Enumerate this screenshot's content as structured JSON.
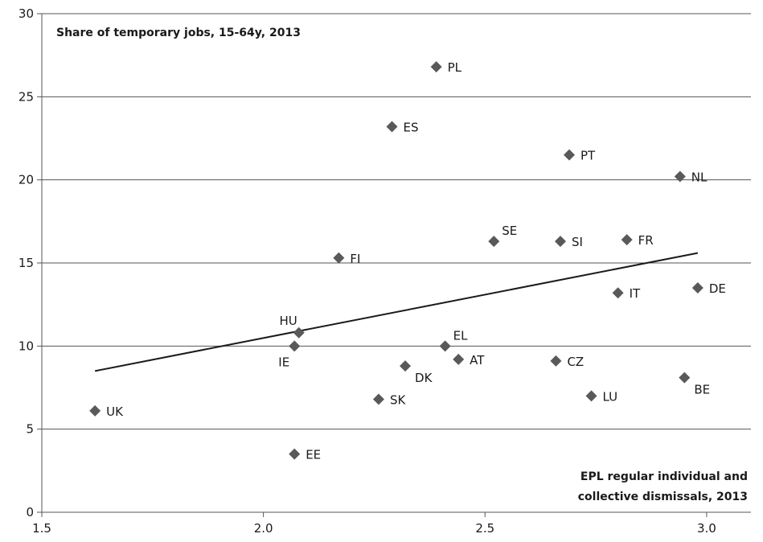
{
  "chart_data": {
    "type": "scatter",
    "title": "",
    "ylabel_annotation": "Share of temporary jobs, 15-64y, 2013",
    "xlabel_annotation": [
      "EPL regular individual and",
      "collective dismissals, 2013"
    ],
    "xlim": [
      1.5,
      3.1
    ],
    "ylim": [
      0,
      30
    ],
    "x_ticks": [
      1.5,
      2.0,
      2.5,
      3.0
    ],
    "x_tick_labels": [
      "1.5",
      "2.0",
      "2.5",
      "3.0"
    ],
    "y_ticks": [
      0,
      5,
      10,
      15,
      20,
      25,
      30
    ],
    "y_tick_labels": [
      "0",
      "5",
      "10",
      "15",
      "20",
      "25",
      "30"
    ],
    "grid": "horizontal",
    "marker_color": "#595959",
    "trendline": {
      "x": [
        1.62,
        2.98
      ],
      "y": [
        8.5,
        15.6
      ],
      "color": "#1a1a1a"
    },
    "points": [
      {
        "label": "PL",
        "x": 2.39,
        "y": 26.8,
        "pos": "right"
      },
      {
        "label": "ES",
        "x": 2.29,
        "y": 23.2,
        "pos": "right"
      },
      {
        "label": "PT",
        "x": 2.69,
        "y": 21.5,
        "pos": "right"
      },
      {
        "label": "NL",
        "x": 2.94,
        "y": 20.2,
        "pos": "right"
      },
      {
        "label": "SE",
        "x": 2.52,
        "y": 16.3,
        "pos": "upright"
      },
      {
        "label": "SI",
        "x": 2.67,
        "y": 16.3,
        "pos": "right"
      },
      {
        "label": "FR",
        "x": 2.82,
        "y": 16.4,
        "pos": "right"
      },
      {
        "label": "FI",
        "x": 2.17,
        "y": 15.3,
        "pos": "right"
      },
      {
        "label": "IT",
        "x": 2.8,
        "y": 13.2,
        "pos": "right"
      },
      {
        "label": "DE",
        "x": 2.98,
        "y": 13.5,
        "pos": "right"
      },
      {
        "label": "HU",
        "x": 2.08,
        "y": 10.8,
        "pos": "upleft"
      },
      {
        "label": "IE",
        "x": 2.07,
        "y": 10.0,
        "pos": "downleft"
      },
      {
        "label": "EL",
        "x": 2.41,
        "y": 10.0,
        "pos": "upright"
      },
      {
        "label": "AT",
        "x": 2.44,
        "y": 9.2,
        "pos": "right"
      },
      {
        "label": "CZ",
        "x": 2.66,
        "y": 9.1,
        "pos": "right"
      },
      {
        "label": "DK",
        "x": 2.32,
        "y": 8.8,
        "pos": "downright"
      },
      {
        "label": "BE",
        "x": 2.95,
        "y": 8.1,
        "pos": "downright"
      },
      {
        "label": "LU",
        "x": 2.74,
        "y": 7.0,
        "pos": "right"
      },
      {
        "label": "SK",
        "x": 2.26,
        "y": 6.8,
        "pos": "right"
      },
      {
        "label": "UK",
        "x": 1.62,
        "y": 6.1,
        "pos": "right"
      },
      {
        "label": "EE",
        "x": 2.07,
        "y": 3.5,
        "pos": "right"
      }
    ]
  }
}
